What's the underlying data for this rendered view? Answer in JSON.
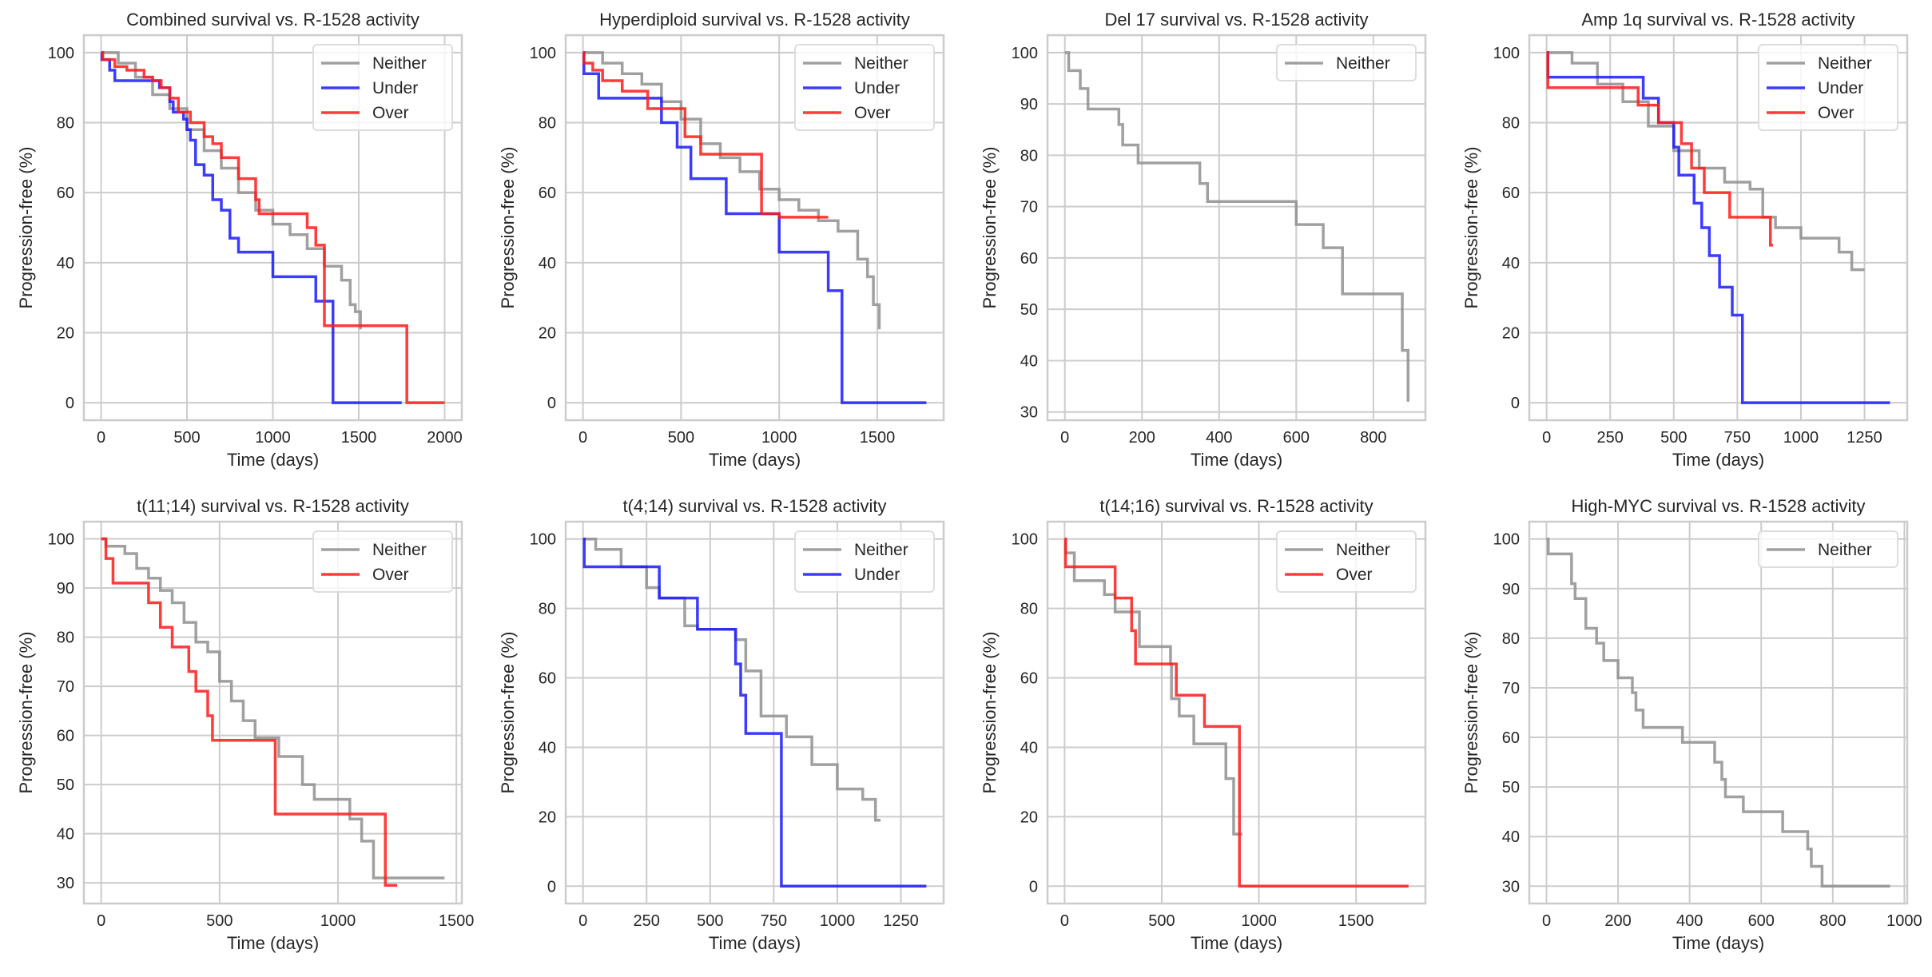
{
  "colors": {
    "Neither": "#8f8f8f",
    "Under": "#1a1aff",
    "Over": "#ff1a1a",
    "grid": "#cccccc"
  },
  "chart_data": [
    {
      "type": "line",
      "step": true,
      "title": "Combined survival vs. R-1528 activity",
      "xlabel": "Time (days)",
      "ylabel": "Progression-free (%)",
      "xlim": [
        -100,
        2100
      ],
      "ylim": [
        -5,
        105
      ],
      "xticks": [
        0,
        500,
        1000,
        1500,
        2000
      ],
      "yticks": [
        0,
        20,
        40,
        60,
        80,
        100
      ],
      "legend": "top-right",
      "grid": true,
      "series": [
        {
          "name": "Neither",
          "x": [
            0,
            100,
            200,
            300,
            400,
            500,
            600,
            700,
            800,
            900,
            1000,
            1100,
            1200,
            1300,
            1400,
            1450,
            1480,
            1510
          ],
          "y": [
            100,
            97,
            93,
            88,
            84,
            78,
            72,
            67,
            60,
            55,
            51,
            48,
            44,
            39,
            35,
            28,
            26,
            21
          ]
        },
        {
          "name": "Under",
          "x": [
            0,
            5,
            50,
            80,
            340,
            400,
            420,
            480,
            500,
            520,
            550,
            600,
            650,
            700,
            750,
            800,
            1000,
            1250,
            1350,
            1750
          ],
          "y": [
            100,
            98,
            95,
            92,
            90,
            86,
            83,
            81,
            78,
            75,
            68,
            65,
            58,
            55,
            47,
            43,
            36,
            29,
            0,
            0
          ]
        },
        {
          "name": "Over",
          "x": [
            0,
            10,
            80,
            150,
            250,
            300,
            350,
            400,
            450,
            520,
            600,
            650,
            700,
            800,
            900,
            920,
            1200,
            1250,
            1300,
            1780,
            2000
          ],
          "y": [
            100,
            98,
            96,
            95,
            93,
            92,
            90,
            87,
            83,
            80,
            76,
            74,
            70,
            64,
            58,
            54,
            50,
            45,
            22,
            0,
            0
          ]
        }
      ]
    },
    {
      "type": "line",
      "step": true,
      "title": "Hyperdiploid survival vs. R-1528 activity",
      "xlabel": "Time (days)",
      "ylabel": "Progression-free (%)",
      "xlim": [
        -88,
        1838
      ],
      "ylim": [
        -5,
        105
      ],
      "xticks": [
        0,
        500,
        1000,
        1500
      ],
      "yticks": [
        0,
        20,
        40,
        60,
        80,
        100
      ],
      "legend": "top-right",
      "grid": true,
      "series": [
        {
          "name": "Neither",
          "x": [
            0,
            100,
            200,
            300,
            400,
            500,
            600,
            700,
            800,
            900,
            1000,
            1100,
            1200,
            1300,
            1400,
            1450,
            1480,
            1510
          ],
          "y": [
            100,
            97,
            94,
            91,
            86,
            81,
            74,
            70,
            66,
            61,
            58,
            55,
            52,
            49,
            41,
            36,
            28,
            21
          ]
        },
        {
          "name": "Under",
          "x": [
            0,
            5,
            80,
            300,
            400,
            480,
            550,
            730,
            1000,
            1250,
            1320,
            1750
          ],
          "y": [
            100,
            94,
            87,
            87,
            80,
            73,
            64,
            54,
            43,
            32,
            0,
            0
          ]
        },
        {
          "name": "Over",
          "x": [
            0,
            5,
            50,
            100,
            200,
            330,
            500,
            520,
            600,
            900,
            910,
            1000,
            1250
          ],
          "y": [
            100,
            97,
            95,
            92,
            89,
            84,
            84,
            76,
            71,
            71,
            54,
            53,
            53
          ]
        }
      ]
    },
    {
      "type": "line",
      "step": true,
      "title": "Del 17 survival vs. R-1528 activity",
      "xlabel": "Time (days)",
      "ylabel": "Progression-free (%)",
      "xlim": [
        -45,
        935
      ],
      "ylim": [
        28.4,
        103.4
      ],
      "xticks": [
        0,
        200,
        400,
        600,
        800
      ],
      "yticks": [
        30,
        40,
        50,
        60,
        70,
        80,
        90,
        100
      ],
      "legend": "top-right",
      "grid": true,
      "series": [
        {
          "name": "Neither",
          "x": [
            0,
            10,
            40,
            60,
            140,
            150,
            190,
            340,
            350,
            370,
            600,
            600,
            670,
            720,
            870,
            875,
            890
          ],
          "y": [
            100,
            96.5,
            93,
            89,
            86,
            82,
            78.5,
            78.5,
            74.5,
            71,
            71,
            66.5,
            62,
            53,
            53,
            42,
            32
          ]
        }
      ]
    },
    {
      "type": "line",
      "step": true,
      "title": "Amp 1q survival vs. R-1528 activity",
      "xlabel": "Time (days)",
      "ylabel": "Progression-free (%)",
      "xlim": [
        -68,
        1418
      ],
      "ylim": [
        -5,
        105
      ],
      "xticks": [
        0,
        250,
        500,
        750,
        1000,
        1250
      ],
      "yticks": [
        0,
        20,
        40,
        60,
        80,
        100
      ],
      "legend": "top-right",
      "grid": true,
      "series": [
        {
          "name": "Neither",
          "x": [
            0,
            100,
            200,
            300,
            400,
            500,
            600,
            700,
            800,
            850,
            900,
            1000,
            1150,
            1200,
            1250
          ],
          "y": [
            100,
            97,
            91,
            86,
            79,
            72,
            67,
            63,
            61,
            53,
            50,
            47,
            43,
            38,
            38
          ]
        },
        {
          "name": "Under",
          "x": [
            0,
            5,
            360,
            380,
            440,
            500,
            520,
            580,
            610,
            640,
            680,
            730,
            770,
            1350
          ],
          "y": [
            100,
            93,
            93,
            87,
            80,
            73,
            65,
            57,
            50,
            42,
            33,
            25,
            0,
            0
          ]
        },
        {
          "name": "Over",
          "x": [
            0,
            5,
            330,
            360,
            440,
            530,
            570,
            620,
            720,
            880,
            890
          ],
          "y": [
            100,
            90,
            90,
            85,
            80,
            74,
            67,
            60,
            53,
            45,
            45
          ]
        }
      ]
    },
    {
      "type": "line",
      "step": true,
      "title": "t(11;14) survival vs. R-1528 activity",
      "xlabel": "Time (days)",
      "ylabel": "Progression-free (%)",
      "xlim": [
        -73,
        1523
      ],
      "ylim": [
        25.8,
        103.5
      ],
      "xticks": [
        0,
        500,
        1000,
        1500
      ],
      "yticks": [
        30,
        40,
        50,
        60,
        70,
        80,
        90,
        100
      ],
      "legend": "top-right",
      "grid": true,
      "series": [
        {
          "name": "Neither",
          "x": [
            0,
            20,
            100,
            150,
            200,
            250,
            300,
            350,
            400,
            450,
            500,
            550,
            600,
            650,
            700,
            750,
            850,
            900,
            1050,
            1100,
            1150,
            1450
          ],
          "y": [
            100,
            98.5,
            97,
            94,
            92,
            89.5,
            87,
            83,
            79,
            77,
            71,
            67,
            63,
            59.5,
            59.5,
            55.7,
            50,
            47,
            43,
            38.5,
            31,
            31
          ]
        },
        {
          "name": "Over",
          "x": [
            0,
            20,
            50,
            150,
            200,
            250,
            300,
            370,
            400,
            450,
            470,
            730,
            735,
            1180,
            1200,
            1250
          ],
          "y": [
            100,
            96,
            91,
            91,
            87,
            82,
            78,
            73,
            69,
            64,
            59,
            59,
            44,
            44,
            29.5,
            29.5
          ]
        }
      ]
    },
    {
      "type": "line",
      "step": true,
      "title": "t(4;14) survival vs. R-1528 activity",
      "xlabel": "Time (days)",
      "ylabel": "Progression-free (%)",
      "xlim": [
        -68,
        1418
      ],
      "ylim": [
        -5,
        105
      ],
      "xticks": [
        0,
        250,
        500,
        750,
        1000,
        1250
      ],
      "yticks": [
        0,
        20,
        40,
        60,
        80,
        100
      ],
      "legend": "top-right",
      "grid": true,
      "series": [
        {
          "name": "Neither",
          "x": [
            0,
            50,
            150,
            250,
            300,
            400,
            450,
            600,
            640,
            700,
            800,
            900,
            1000,
            1100,
            1150,
            1170
          ],
          "y": [
            100,
            97,
            92,
            86,
            83,
            75,
            74,
            71,
            62,
            49,
            43,
            35,
            28,
            25,
            19,
            19
          ]
        },
        {
          "name": "Under",
          "x": [
            0,
            5,
            290,
            300,
            440,
            450,
            580,
            600,
            620,
            640,
            780,
            780,
            1350
          ],
          "y": [
            100,
            92,
            92,
            83,
            83,
            74,
            74,
            64,
            55,
            44,
            44,
            0,
            0
          ]
        }
      ]
    },
    {
      "type": "line",
      "step": true,
      "title": "t(14;16) survival vs. R-1528 activity",
      "xlabel": "Time (days)",
      "ylabel": "Progression-free (%)",
      "xlim": [
        -88,
        1857
      ],
      "ylim": [
        -5,
        105
      ],
      "xticks": [
        0,
        500,
        1000,
        1500
      ],
      "yticks": [
        0,
        20,
        40,
        60,
        80,
        100
      ],
      "legend": "top-right",
      "grid": true,
      "series": [
        {
          "name": "Neither",
          "x": [
            0,
            5,
            50,
            205,
            260,
            385,
            385,
            545,
            550,
            590,
            665,
            830,
            870,
            915
          ],
          "y": [
            100,
            96,
            88,
            84,
            79,
            74.6,
            69,
            64,
            54,
            49,
            41,
            31,
            15,
            15
          ]
        },
        {
          "name": "Over",
          "x": [
            0,
            5,
            260,
            345,
            365,
            575,
            720,
            900,
            1770
          ],
          "y": [
            100,
            92,
            83,
            73.6,
            64,
            55,
            46,
            0,
            0
          ]
        }
      ]
    },
    {
      "type": "line",
      "step": true,
      "title": "High-MYC survival vs. R-1528 activity",
      "xlabel": "Time (days)",
      "ylabel": "Progression-free (%)",
      "xlim": [
        -48,
        1008
      ],
      "ylim": [
        26.5,
        103.5
      ],
      "xticks": [
        0,
        200,
        400,
        600,
        800,
        1000
      ],
      "yticks": [
        30,
        40,
        50,
        60,
        70,
        80,
        90,
        100
      ],
      "legend": "top-right",
      "grid": true,
      "series": [
        {
          "name": "Neither",
          "x": [
            0,
            5,
            70,
            80,
            110,
            140,
            160,
            200,
            240,
            250,
            270,
            380,
            470,
            490,
            500,
            550,
            660,
            730,
            740,
            770,
            960
          ],
          "y": [
            100,
            97,
            91,
            88,
            82,
            79,
            75.5,
            72,
            69,
            65.5,
            62,
            59,
            55,
            51.5,
            48,
            45,
            41,
            37.5,
            34,
            30,
            30
          ]
        }
      ]
    }
  ]
}
